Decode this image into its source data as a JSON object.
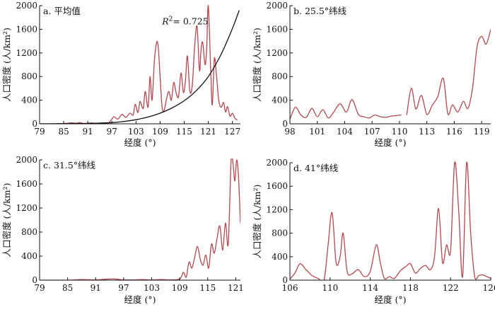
{
  "chart_data": [
    {
      "id": "a",
      "type": "line",
      "title": "a. 平均值",
      "xlabel": "经度 (°)",
      "ylabel": "人口密度 (人/km²)",
      "xlim": [
        79,
        129
      ],
      "ylim": [
        0,
        2000
      ],
      "xticks": [
        "79",
        "85",
        "91",
        "97",
        "103",
        "109",
        "115",
        "121",
        "127"
      ],
      "yticks": [
        "0",
        "400",
        "800",
        "1200",
        "1600",
        "2000"
      ],
      "annotation": {
        "lead": "R",
        "sup": "2",
        "rest": "= 0.725",
        "x": 109.5,
        "y": 1680
      },
      "series": [
        {
          "kind": "data",
          "color": "#b5484f",
          "x": [
            79,
            82,
            85,
            87,
            88,
            89,
            90,
            91,
            92,
            93,
            95,
            96,
            96.8,
            97.5,
            98.5,
            99.5,
            100.5,
            101.5,
            102.3,
            102.8,
            103.5,
            104,
            104.8,
            105.3,
            106,
            106.5,
            107,
            107.6,
            108.2,
            108.6,
            109,
            109.5,
            110,
            110.6,
            111.2,
            111.8,
            112.4,
            113,
            113.6,
            114.2,
            114.8,
            115.3,
            115.8,
            116.4,
            117,
            117.6,
            118.2,
            118.8,
            119.2,
            119.6,
            120.2,
            120.6,
            121,
            121.6,
            122,
            122.5,
            123,
            123.6,
            124.2,
            124.8,
            125.3,
            125.8,
            126.4,
            127,
            127.6,
            128.2
          ],
          "y": [
            0,
            0,
            5,
            15,
            10,
            20,
            5,
            10,
            15,
            5,
            10,
            5,
            60,
            120,
            80,
            160,
            110,
            180,
            150,
            330,
            190,
            380,
            260,
            550,
            280,
            800,
            400,
            1080,
            1390,
            1250,
            800,
            280,
            230,
            420,
            550,
            400,
            700,
            520,
            460,
            860,
            530,
            720,
            1150,
            560,
            640,
            1300,
            1650,
            900,
            1250,
            1380,
            1000,
            1280,
            2000,
            900,
            320,
            1100,
            850,
            400,
            280,
            360,
            200,
            290,
            130,
            180,
            100,
            60
          ]
        },
        {
          "kind": "fit",
          "color": "#111111",
          "x": [
            79,
            85,
            91,
            97,
            100,
            103,
            106,
            109,
            112,
            115,
            118,
            121,
            124,
            126,
            127.5,
            128.7
          ],
          "y": [
            0,
            2,
            6,
            20,
            40,
            70,
            115,
            180,
            270,
            390,
            560,
            800,
            1150,
            1450,
            1700,
            1920
          ]
        }
      ]
    },
    {
      "id": "b",
      "type": "line",
      "title": "b. 25.5°纬线",
      "xlabel": "经度 (°)",
      "ylabel": "人口密度 (人/km²)",
      "xlim": [
        98,
        120
      ],
      "ylim": [
        0,
        2000
      ],
      "xticks": [
        "98",
        "101",
        "104",
        "107",
        "110",
        "113",
        "116",
        "119"
      ],
      "yticks": [
        "0",
        "400",
        "800",
        "1200",
        "1600",
        "2000"
      ],
      "series": [
        {
          "kind": "data",
          "color": "#b5484f",
          "x": [
            98,
            98.6,
            99.2,
            99.8,
            100.4,
            101,
            101.6,
            102.2,
            102.8,
            103.5,
            104.2,
            104.8,
            105.5,
            106.1,
            106.7,
            107.3,
            107.9,
            108.5,
            109.1,
            109.7,
            110.2
          ],
          "y": [
            80,
            280,
            150,
            110,
            260,
            120,
            240,
            100,
            200,
            340,
            200,
            410,
            160,
            120,
            100,
            150,
            120,
            110,
            130,
            140,
            150
          ]
        },
        {
          "kind": "data",
          "color": "#b5484f",
          "x": [
            110.8,
            111.3,
            111.8,
            112.4,
            113,
            113.6,
            114.2,
            114.8,
            115.3,
            115.8,
            116.4,
            117,
            117.5,
            118,
            118.5,
            119,
            119.5,
            120
          ],
          "y": [
            150,
            600,
            250,
            480,
            160,
            320,
            460,
            770,
            170,
            320,
            200,
            380,
            260,
            600,
            1300,
            1480,
            1350,
            1600
          ]
        }
      ]
    },
    {
      "id": "c",
      "type": "line",
      "title": "c. 31.5°纬线",
      "xlabel": "经度 (°)",
      "ylabel": "人口密度 (人/km²)",
      "xlim": [
        79,
        122
      ],
      "ylim": [
        0,
        2000
      ],
      "xticks": [
        "79",
        "85",
        "91",
        "97",
        "103",
        "109",
        "115",
        "121"
      ],
      "yticks": [
        "0",
        "400",
        "800",
        "1200",
        "1600",
        "2000"
      ],
      "series": [
        {
          "kind": "data",
          "color": "#b5484f",
          "x": [
            79,
            85,
            88,
            91,
            93,
            95,
            97,
            99,
            101,
            103,
            105,
            107,
            109,
            109.8,
            110.4,
            111,
            111.6,
            112.2,
            112.8,
            113.4,
            114,
            114.6,
            115.2,
            115.8,
            116.4,
            117,
            117.6,
            118.2,
            118.8,
            119.4,
            120,
            120.4,
            120.8,
            121.2,
            121.6,
            122
          ],
          "y": [
            0,
            0,
            10,
            5,
            15,
            20,
            5,
            5,
            10,
            5,
            10,
            5,
            20,
            130,
            50,
            300,
            200,
            380,
            560,
            350,
            250,
            420,
            200,
            600,
            450,
            700,
            900,
            500,
            950,
            600,
            2000,
            1950,
            1650,
            2000,
            1700,
            950
          ]
        }
      ]
    },
    {
      "id": "d",
      "type": "line",
      "title": "d. 41°纬线",
      "xlabel": "经度 (°)",
      "ylabel": "人口密度 (人/km²)",
      "xlim": [
        106,
        126
      ],
      "ylim": [
        0,
        2000
      ],
      "xticks": [
        "106",
        "110",
        "114",
        "118",
        "122",
        "126"
      ],
      "yticks": [
        "0",
        "400",
        "800",
        "1200",
        "1600",
        "2000"
      ],
      "series": [
        {
          "kind": "data",
          "color": "#b5484f",
          "x": [
            106,
            106.5,
            107,
            107.6,
            108.2,
            108.8,
            109.4,
            109.8,
            110.2,
            110.6,
            111,
            111.3,
            111.7,
            112.2,
            112.8,
            113.4,
            114,
            114.6,
            115,
            115.4,
            115.9,
            116.4,
            117,
            117.6,
            118,
            118.5,
            119,
            119.5,
            120,
            120.4,
            120.8,
            121.2,
            121.6,
            122,
            122.4,
            122.8,
            123.2,
            123.6,
            124,
            124.4,
            124.8,
            125.2,
            125.6,
            126
          ],
          "y": [
            20,
            120,
            280,
            180,
            80,
            30,
            10,
            600,
            1150,
            300,
            400,
            800,
            150,
            110,
            180,
            60,
            150,
            600,
            300,
            30,
            60,
            30,
            160,
            240,
            280,
            120,
            200,
            250,
            180,
            400,
            1220,
            300,
            600,
            500,
            2000,
            1200,
            60,
            2000,
            800,
            60,
            80,
            90,
            60,
            30
          ]
        }
      ]
    }
  ]
}
